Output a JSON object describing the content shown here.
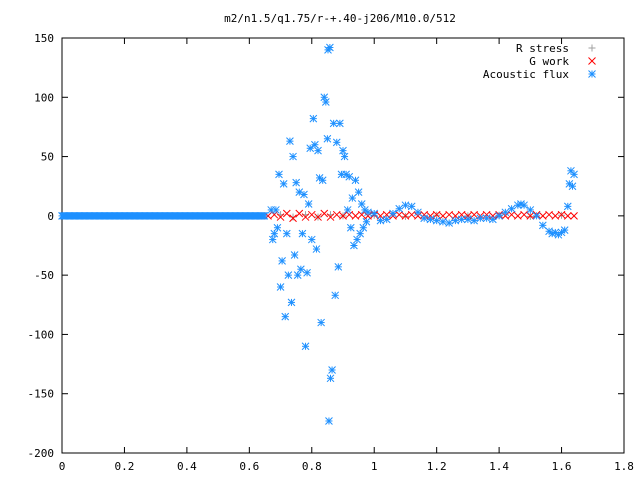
{
  "chart_data": {
    "type": "scatter",
    "title": "m2/n1.5/q1.75/r-+.40-j206/M10.0/512",
    "xlabel": "",
    "ylabel": "",
    "xlim": [
      0,
      1.8
    ],
    "ylim": [
      -200,
      150
    ],
    "x_ticks": [
      {
        "value": 0,
        "label": "0"
      },
      {
        "value": 0.2,
        "label": "0.2"
      },
      {
        "value": 0.4,
        "label": "0.4"
      },
      {
        "value": 0.6,
        "label": "0.6"
      },
      {
        "value": 0.8,
        "label": "0.8"
      },
      {
        "value": 1,
        "label": "1"
      },
      {
        "value": 1.2,
        "label": "1.2"
      },
      {
        "value": 1.4,
        "label": "1.4"
      },
      {
        "value": 1.6,
        "label": "1.6"
      },
      {
        "value": 1.8,
        "label": "1.8"
      }
    ],
    "y_ticks": [
      {
        "value": 150,
        "label": "150"
      },
      {
        "value": 100,
        "label": "100"
      },
      {
        "value": 50,
        "label": "50"
      },
      {
        "value": 0,
        "label": "0"
      },
      {
        "value": -50,
        "label": "-50"
      },
      {
        "value": -100,
        "label": "-100"
      },
      {
        "value": -150,
        "label": "-150"
      },
      {
        "value": -200,
        "label": "-200"
      }
    ],
    "grid": false,
    "legend_position": "top-right",
    "series": [
      {
        "name": "R stress",
        "marker": "plus",
        "color": "#a0a0a0",
        "points": [
          [
            0.7,
            1
          ],
          [
            0.74,
            -1
          ],
          [
            0.78,
            1
          ],
          [
            0.82,
            -1
          ],
          [
            0.86,
            1
          ],
          [
            0.9,
            0
          ],
          [
            1.0,
            0.5
          ],
          [
            1.1,
            -0.5
          ],
          [
            1.2,
            0.5
          ],
          [
            1.3,
            0
          ],
          [
            1.4,
            0.5
          ],
          [
            1.5,
            -0.5
          ],
          [
            1.6,
            0.5
          ]
        ]
      },
      {
        "name": "G work",
        "marker": "cross",
        "color": "#ff0000",
        "points": [
          [
            0.66,
            0
          ],
          [
            0.68,
            1
          ],
          [
            0.7,
            -1
          ],
          [
            0.72,
            2
          ],
          [
            0.74,
            -2
          ],
          [
            0.76,
            2
          ],
          [
            0.78,
            -1
          ],
          [
            0.8,
            1
          ],
          [
            0.82,
            -1
          ],
          [
            0.84,
            2
          ],
          [
            0.86,
            -1
          ],
          [
            0.88,
            1
          ],
          [
            0.9,
            0
          ],
          [
            0.92,
            1
          ],
          [
            0.94,
            0
          ],
          [
            0.96,
            1
          ],
          [
            0.98,
            0
          ],
          [
            1.0,
            1
          ],
          [
            1.02,
            0
          ],
          [
            1.04,
            1
          ],
          [
            1.06,
            0
          ],
          [
            1.08,
            1
          ],
          [
            1.1,
            0
          ],
          [
            1.12,
            1
          ],
          [
            1.14,
            0
          ],
          [
            1.16,
            1
          ],
          [
            1.18,
            0
          ],
          [
            1.2,
            1
          ],
          [
            1.22,
            0
          ],
          [
            1.24,
            1
          ],
          [
            1.26,
            0
          ],
          [
            1.28,
            1
          ],
          [
            1.3,
            0
          ],
          [
            1.32,
            1
          ],
          [
            1.34,
            0
          ],
          [
            1.36,
            1
          ],
          [
            1.38,
            0
          ],
          [
            1.4,
            1
          ],
          [
            1.42,
            0
          ],
          [
            1.44,
            1
          ],
          [
            1.46,
            0
          ],
          [
            1.48,
            1
          ],
          [
            1.5,
            0
          ],
          [
            1.52,
            1
          ],
          [
            1.54,
            0
          ],
          [
            1.56,
            1
          ],
          [
            1.58,
            0
          ],
          [
            1.6,
            1
          ],
          [
            1.62,
            0
          ],
          [
            1.64,
            0
          ]
        ]
      },
      {
        "name": "Acoustic flux",
        "marker": "star",
        "color": "#1e90ff",
        "points": [
          [
            0.67,
            5
          ],
          [
            0.675,
            -20
          ],
          [
            0.68,
            -15
          ],
          [
            0.685,
            5
          ],
          [
            0.69,
            -10
          ],
          [
            0.695,
            35
          ],
          [
            0.7,
            -60
          ],
          [
            0.705,
            -38
          ],
          [
            0.71,
            27
          ],
          [
            0.715,
            -85
          ],
          [
            0.72,
            -15
          ],
          [
            0.725,
            -50
          ],
          [
            0.73,
            63
          ],
          [
            0.735,
            -73
          ],
          [
            0.74,
            50
          ],
          [
            0.745,
            -33
          ],
          [
            0.75,
            28
          ],
          [
            0.755,
            -50
          ],
          [
            0.76,
            20
          ],
          [
            0.765,
            -45
          ],
          [
            0.77,
            -15
          ],
          [
            0.775,
            18
          ],
          [
            0.78,
            -110
          ],
          [
            0.785,
            -48
          ],
          [
            0.79,
            10
          ],
          [
            0.795,
            57
          ],
          [
            0.8,
            -20
          ],
          [
            0.805,
            82
          ],
          [
            0.81,
            60
          ],
          [
            0.815,
            -28
          ],
          [
            0.82,
            55
          ],
          [
            0.825,
            32
          ],
          [
            0.83,
            -90
          ],
          [
            0.835,
            30
          ],
          [
            0.84,
            100
          ],
          [
            0.845,
            96
          ],
          [
            0.85,
            65
          ],
          [
            0.852,
            140
          ],
          [
            0.855,
            -173
          ],
          [
            0.858,
            142
          ],
          [
            0.86,
            -137
          ],
          [
            0.865,
            -130
          ],
          [
            0.87,
            78
          ],
          [
            0.875,
            -67
          ],
          [
            0.88,
            62
          ],
          [
            0.885,
            -43
          ],
          [
            0.89,
            78
          ],
          [
            0.895,
            35
          ],
          [
            0.9,
            55
          ],
          [
            0.905,
            50
          ],
          [
            0.91,
            35
          ],
          [
            0.915,
            5
          ],
          [
            0.92,
            33
          ],
          [
            0.925,
            -10
          ],
          [
            0.93,
            15
          ],
          [
            0.935,
            -25
          ],
          [
            0.94,
            30
          ],
          [
            0.945,
            -20
          ],
          [
            0.95,
            20
          ],
          [
            0.955,
            -15
          ],
          [
            0.96,
            10
          ],
          [
            0.965,
            -10
          ],
          [
            0.97,
            5
          ],
          [
            0.975,
            -5
          ],
          [
            0.98,
            3
          ],
          [
            1.0,
            2
          ],
          [
            1.02,
            -4
          ],
          [
            1.04,
            -3
          ],
          [
            1.06,
            2
          ],
          [
            1.08,
            6
          ],
          [
            1.1,
            9
          ],
          [
            1.12,
            8
          ],
          [
            1.14,
            3
          ],
          [
            1.16,
            -2
          ],
          [
            1.18,
            -3
          ],
          [
            1.2,
            -4
          ],
          [
            1.22,
            -5
          ],
          [
            1.24,
            -6
          ],
          [
            1.26,
            -4
          ],
          [
            1.28,
            -3
          ],
          [
            1.3,
            -3
          ],
          [
            1.32,
            -4
          ],
          [
            1.34,
            -2
          ],
          [
            1.36,
            -2
          ],
          [
            1.38,
            -3
          ],
          [
            1.4,
            0
          ],
          [
            1.42,
            3
          ],
          [
            1.44,
            6
          ],
          [
            1.46,
            9
          ],
          [
            1.47,
            10
          ],
          [
            1.48,
            9
          ],
          [
            1.5,
            5
          ],
          [
            1.52,
            0
          ],
          [
            1.54,
            -8
          ],
          [
            1.56,
            -13
          ],
          [
            1.57,
            -15
          ],
          [
            1.58,
            -14
          ],
          [
            1.59,
            -16
          ],
          [
            1.6,
            -14
          ],
          [
            1.61,
            -12
          ],
          [
            1.62,
            8
          ],
          [
            1.625,
            27
          ],
          [
            1.63,
            38
          ],
          [
            1.635,
            25
          ],
          [
            1.64,
            35
          ]
        ],
        "baseline": {
          "from": 0,
          "to": 0.65,
          "value": 0
        }
      }
    ]
  }
}
